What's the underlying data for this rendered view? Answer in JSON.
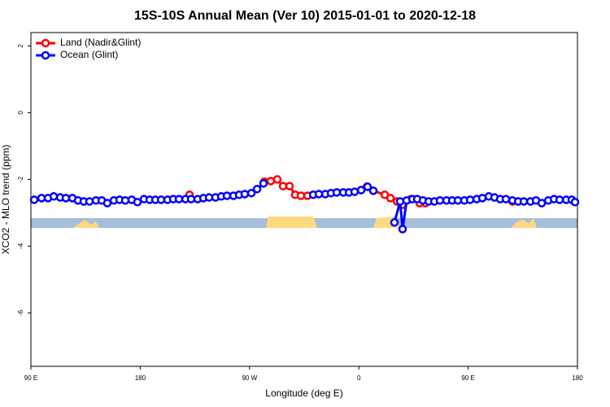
{
  "chart_data": {
    "type": "line",
    "title": "15S-10S Annual Mean (Ver 10)   2015-01-01 to 2020-12-18",
    "xlabel": "Longitude (deg E)",
    "ylabel": "XCO2 - MLO trend (ppm)",
    "xlim": [
      90,
      540
    ],
    "ylim": [
      -7.6,
      2.4
    ],
    "xticks": [
      {
        "value": 90,
        "label": "90 E"
      },
      180,
      {
        "value": 270,
        "label": "90 W"
      },
      {
        "value": 360,
        "label": "0"
      },
      {
        "value": 450,
        "label": "90 E"
      },
      {
        "value": 540,
        "label": "180"
      }
    ],
    "yticks": [
      -6,
      -4,
      -2,
      0,
      2
    ],
    "legend": "upper left",
    "series": [
      {
        "name": "Land (Nadir&Glint)",
        "color": "#ff0000",
        "x": [
          128.8,
          133.5,
          null,
          220.6,
          null,
          282.2,
          287.5,
          292.9,
          297.6,
          302.9,
          307.6,
          312.3,
          317.7,
          null,
          366.6,
          371.9,
          381.3,
          386.0,
          391.4,
          396.0,
          402.8,
          410.0,
          414.7,
          null,
          486.5,
          491.2
        ],
        "values": [
          -2.63,
          -2.66,
          null,
          -2.46,
          null,
          -2.07,
          -2.05,
          -2.0,
          -2.2,
          -2.2,
          -2.46,
          -2.49,
          -2.49,
          null,
          -2.22,
          -2.34,
          -2.46,
          -2.56,
          -2.66,
          -2.76,
          -2.59,
          -2.71,
          -2.71,
          null,
          -2.66,
          -2.66
        ]
      },
      {
        "name": "Ocean (Glint)",
        "color": "#0000ff",
        "x": [
          92.7,
          98.7,
          104.1,
          108.8,
          114.1,
          118.8,
          124.2,
          128.8,
          133.5,
          138.2,
          143.6,
          148.3,
          152.9,
          158.3,
          163.0,
          167.7,
          173.0,
          177.7,
          183.1,
          187.8,
          192.5,
          197.2,
          202.5,
          207.2,
          211.9,
          217.3,
          221.9,
          227.3,
          232.0,
          236.7,
          242.0,
          246.7,
          251.4,
          256.8,
          261.4,
          266.1,
          271.5,
          276.2,
          281.5,
          null,
          322.4,
          327.1,
          332.4,
          337.1,
          341.8,
          347.2,
          351.9,
          356.5,
          361.9,
          367.2,
          371.9,
          null,
          389.3,
          394.0,
          396.0,
          399.4,
          404.1,
          408.1,
          412.8,
          417.5,
          422.2,
          426.8,
          432.2,
          436.9,
          441.6,
          446.9,
          451.6,
          457.0,
          461.7,
          467.0,
          471.7,
          476.4,
          481.1,
          486.5,
          491.2,
          495.8,
          501.2,
          505.9,
          510.6,
          516.0,
          520.7,
          525.3,
          530.7,
          535.3,
          538.0
        ],
        "values": [
          -2.61,
          -2.56,
          -2.56,
          -2.51,
          -2.54,
          -2.56,
          -2.56,
          -2.63,
          -2.66,
          -2.66,
          -2.63,
          -2.63,
          -2.71,
          -2.63,
          -2.61,
          -2.63,
          -2.61,
          -2.68,
          -2.59,
          -2.61,
          -2.61,
          -2.61,
          -2.61,
          -2.59,
          -2.59,
          -2.59,
          -2.59,
          -2.59,
          -2.56,
          -2.54,
          -2.54,
          -2.51,
          -2.49,
          -2.49,
          -2.46,
          -2.44,
          -2.41,
          -2.29,
          -2.12,
          null,
          -2.46,
          -2.44,
          -2.44,
          -2.41,
          -2.39,
          -2.39,
          -2.39,
          -2.37,
          -2.32,
          -2.22,
          -2.34,
          null,
          -3.29,
          -2.66,
          -3.49,
          -2.63,
          -2.59,
          -2.59,
          -2.63,
          -2.66,
          -2.66,
          -2.63,
          -2.63,
          -2.63,
          -2.63,
          -2.63,
          -2.61,
          -2.59,
          -2.56,
          -2.51,
          -2.54,
          -2.59,
          -2.59,
          -2.63,
          -2.66,
          -2.66,
          -2.66,
          -2.63,
          -2.71,
          -2.63,
          -2.59,
          -2.61,
          -2.61,
          -2.61,
          -2.68
        ]
      }
    ]
  }
}
